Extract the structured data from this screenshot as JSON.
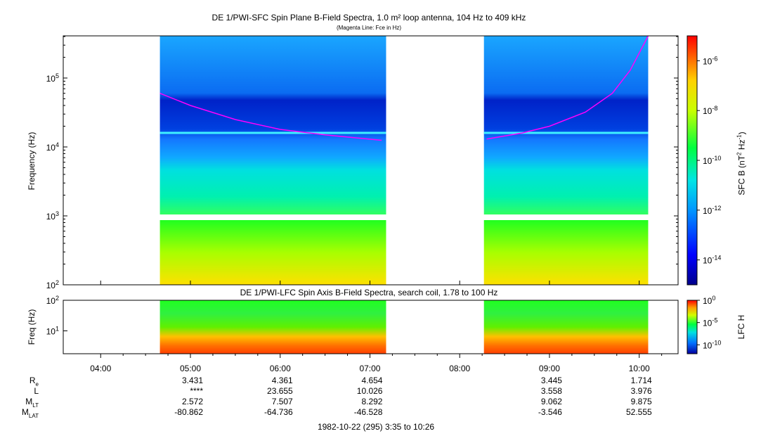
{
  "chart_data": [
    {
      "type": "heatmap",
      "title": "DE 1/PWI-SFC  Spin Plane B-Field Spectra, 1.0 m² loop antenna, 104 Hz to 409 kHz",
      "subtitle": "(Magenta Line: Fce in Hz)",
      "ylabel": "Frequency (Hz)",
      "yscale": "log",
      "ylim": [
        100,
        409000
      ],
      "yticks": [
        {
          "value": 100,
          "base": "10",
          "exp": "2"
        },
        {
          "value": 1000,
          "base": "10",
          "exp": "3"
        },
        {
          "value": 10000,
          "base": "10",
          "exp": "4"
        },
        {
          "value": 100000,
          "base": "10",
          "exp": "5"
        }
      ],
      "xlim_hours": [
        3.583,
        10.433
      ],
      "data_intervals_hours": [
        [
          4.66,
          7.18
        ],
        [
          8.27,
          10.1
        ]
      ],
      "colorbar": {
        "label_base": "SFC B (nT",
        "label_sup1": "2",
        "label_mid": " Hz",
        "label_sup2": "-1",
        "label_end": ")",
        "scale": "log",
        "range": [
          1e-15,
          1e-05
        ],
        "ticks": [
          {
            "value": 1e-14,
            "base": "10",
            "exp": "-14"
          },
          {
            "value": 1e-12,
            "base": "10",
            "exp": "-12"
          },
          {
            "value": 1e-10,
            "base": "10",
            "exp": "-10"
          },
          {
            "value": 1e-08,
            "base": "10",
            "exp": "-8"
          },
          {
            "value": 1e-06,
            "base": "10",
            "exp": "-6"
          }
        ]
      },
      "series": [
        {
          "name": "Fce",
          "color": "#ff00ff",
          "segments": [
            {
              "x": [
                4.66,
                5.0,
                5.5,
                6.0,
                6.5,
                7.13
              ],
              "y": [
                60000,
                40000,
                25000,
                18000,
                15000,
                12500
              ]
            },
            {
              "x": [
                8.3,
                8.7,
                9.0,
                9.4,
                9.7,
                9.9,
                10.1
              ],
              "y": [
                13000,
                16000,
                20000,
                32000,
                60000,
                130000,
                409000
              ]
            }
          ]
        }
      ]
    },
    {
      "type": "heatmap",
      "title": "DE 1/PWI-LFC  Spin Axis B-Field Spectra, search coil, 1.78 to 100 Hz",
      "ylabel": "Freq (Hz)",
      "yscale": "log",
      "ylim": [
        1.78,
        100
      ],
      "yticks": [
        {
          "value": 10,
          "base": "10",
          "exp": "1"
        },
        {
          "value": 100,
          "base": "10",
          "exp": "2"
        }
      ],
      "data_intervals_hours": [
        [
          4.66,
          7.18
        ],
        [
          8.27,
          10.1
        ]
      ],
      "colorbar": {
        "label": "LFC H",
        "scale": "log",
        "range": [
          1e-12,
          1
        ],
        "ticks": [
          {
            "value": 1e-10,
            "base": "10",
            "exp": "-10"
          },
          {
            "value": 1e-05,
            "base": "10",
            "exp": "-5"
          },
          {
            "value": 1,
            "base": "10",
            "exp": "0"
          }
        ]
      }
    }
  ],
  "time_axis": {
    "ticks": [
      {
        "hour": 4,
        "label": "04:00"
      },
      {
        "hour": 5,
        "label": "05:00"
      },
      {
        "hour": 6,
        "label": "06:00"
      },
      {
        "hour": 7,
        "label": "07:00"
      },
      {
        "hour": 8,
        "label": "08:00"
      },
      {
        "hour": 9,
        "label": "09:00"
      },
      {
        "hour": 10,
        "label": "10:00"
      }
    ],
    "caption": "1982-10-22 (295) 3:35 to 10:26"
  },
  "ephemeris": {
    "rows": [
      {
        "label": "R",
        "sub": "e",
        "values": [
          "3.431",
          "4.361",
          "4.654",
          "",
          "3.445",
          "1.714"
        ]
      },
      {
        "label": "L",
        "sub": "",
        "values": [
          "****",
          "23.655",
          "10.026",
          "",
          "3.558",
          "3.976"
        ]
      },
      {
        "label": "M",
        "sub": "LT",
        "values": [
          "2.572",
          "7.507",
          "8.292",
          "",
          "9.062",
          "9.875"
        ]
      },
      {
        "label": "M",
        "sub": "LAT",
        "values": [
          "-80.862",
          "-64.736",
          "-46.528",
          "",
          "-3.546",
          "52.555"
        ]
      }
    ],
    "column_hours": [
      5,
      6,
      7,
      8,
      9,
      10
    ]
  }
}
